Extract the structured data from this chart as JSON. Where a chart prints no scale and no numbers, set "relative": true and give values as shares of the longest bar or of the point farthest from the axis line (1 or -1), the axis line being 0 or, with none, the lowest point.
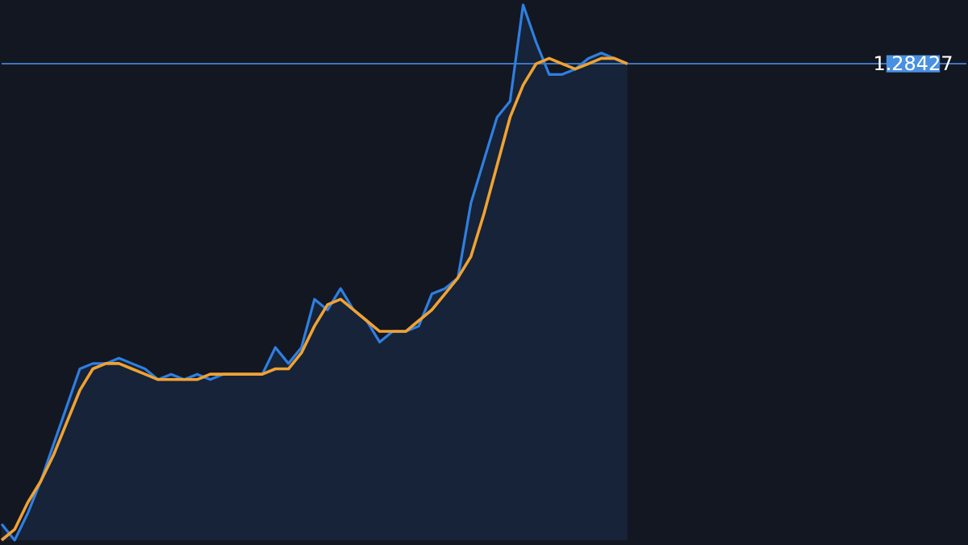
{
  "chart_data": {
    "type": "line",
    "relative": true,
    "categories": [
      null,
      null,
      null,
      null,
      null,
      null,
      null,
      null,
      null,
      null,
      null,
      null,
      null,
      null,
      null,
      null,
      null,
      null,
      null,
      null,
      null,
      null,
      null,
      null,
      null,
      null,
      null,
      null,
      null,
      null,
      null,
      null,
      null,
      null,
      null,
      null,
      null,
      null,
      null,
      null,
      null,
      null,
      null,
      null,
      null,
      null,
      null,
      null,
      null,
      null,
      null,
      null,
      null,
      null,
      null,
      null,
      null,
      null,
      null,
      null,
      null,
      null,
      null,
      null,
      null,
      null,
      null,
      null,
      null,
      null,
      null,
      null,
      null,
      null,
      null
    ],
    "series": [
      {
        "type": "area",
        "color": "#2f7fe0",
        "values": [
          0.03,
          0,
          0.05,
          0.11,
          0.18,
          0.25,
          0.32,
          0.33,
          0.33,
          0.34,
          0.33,
          0.32,
          0.3,
          0.31,
          0.3,
          0.31,
          0.3,
          0.31,
          0.31,
          0.31,
          0.31,
          0.36,
          0.33,
          0.36,
          0.45,
          0.43,
          0.47,
          0.43,
          0.41,
          0.37,
          0.39,
          0.39,
          0.4,
          0.46,
          0.47,
          0.49,
          0.63,
          0.71,
          0.79,
          0.82,
          1.0,
          0.93,
          0.87,
          0.87,
          0.88,
          0.9,
          0.91,
          0.9,
          0.89,
          null,
          null,
          null,
          null,
          null,
          null,
          null,
          null,
          null,
          null,
          null,
          null,
          null,
          null,
          null,
          null,
          null,
          null,
          null,
          null,
          null,
          null,
          null,
          null,
          null,
          null
        ]
      },
      {
        "type": "line",
        "color": "#f0a232",
        "values": [
          0,
          0.02,
          0.07,
          0.11,
          0.16,
          0.22,
          0.28,
          0.32,
          0.33,
          0.33,
          0.32,
          0.31,
          0.3,
          0.3,
          0.3,
          0.3,
          0.31,
          0.31,
          0.31,
          0.31,
          0.31,
          0.32,
          0.32,
          0.35,
          0.4,
          0.44,
          0.45,
          0.43,
          0.41,
          0.39,
          0.39,
          0.39,
          0.41,
          0.43,
          0.46,
          0.49,
          0.53,
          0.61,
          0.7,
          0.79,
          0.85,
          0.89,
          0.9,
          0.89,
          0.88,
          0.89,
          0.9,
          0.9,
          0.89,
          null,
          null,
          null,
          null,
          null,
          null,
          null,
          null,
          null,
          null,
          null,
          null,
          null,
          null,
          null,
          null,
          null,
          null,
          null,
          null,
          null,
          null,
          null,
          null,
          null,
          null
        ]
      }
    ],
    "ref_lines": [
      {
        "axis": "y",
        "value": 0.89,
        "color": "#4a90e2"
      }
    ],
    "annotations": [
      {
        "text": "1.28427",
        "y": 0.89
      }
    ]
  }
}
